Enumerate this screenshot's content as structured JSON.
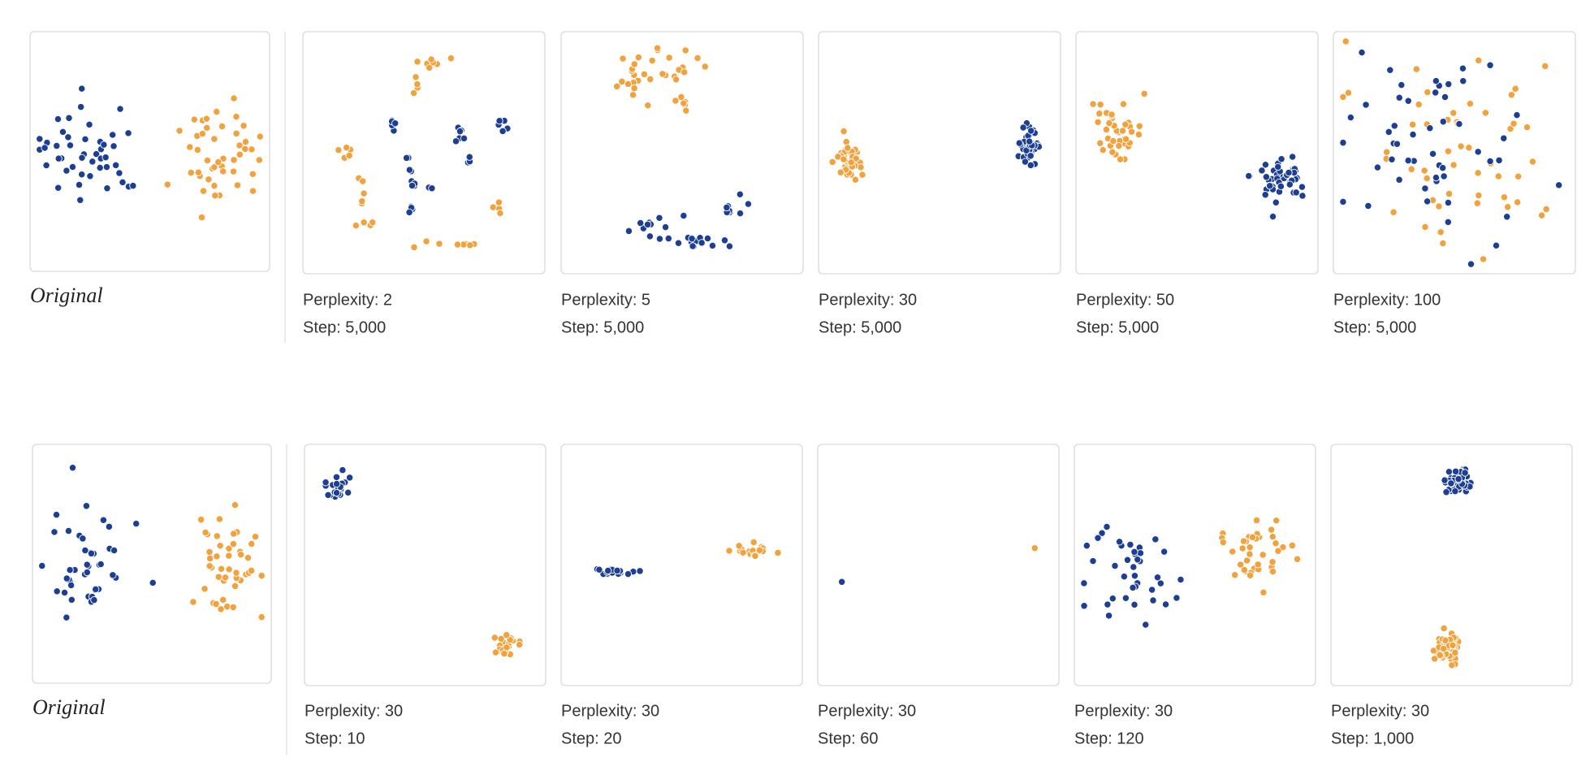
{
  "rows": [
    {
      "original": "Original",
      "panels": [
        {
          "perplexity": "Perplexity: 2",
          "step": "Step: 5,000"
        },
        {
          "perplexity": "Perplexity: 5",
          "step": "Step: 5,000"
        },
        {
          "perplexity": "Perplexity: 30",
          "step": "Step: 5,000"
        },
        {
          "perplexity": "Perplexity: 50",
          "step": "Step: 5,000"
        },
        {
          "perplexity": "Perplexity: 100",
          "step": "Step: 5,000"
        }
      ]
    },
    {
      "original": "Original",
      "panels": [
        {
          "perplexity": "Perplexity: 30",
          "step": "Step: 10"
        },
        {
          "perplexity": "Perplexity: 30",
          "step": "Step: 20"
        },
        {
          "perplexity": "Perplexity: 30",
          "step": "Step: 60"
        },
        {
          "perplexity": "Perplexity: 30",
          "step": "Step: 120"
        },
        {
          "perplexity": "Perplexity: 30",
          "step": "Step: 1,000"
        }
      ]
    }
  ]
}
